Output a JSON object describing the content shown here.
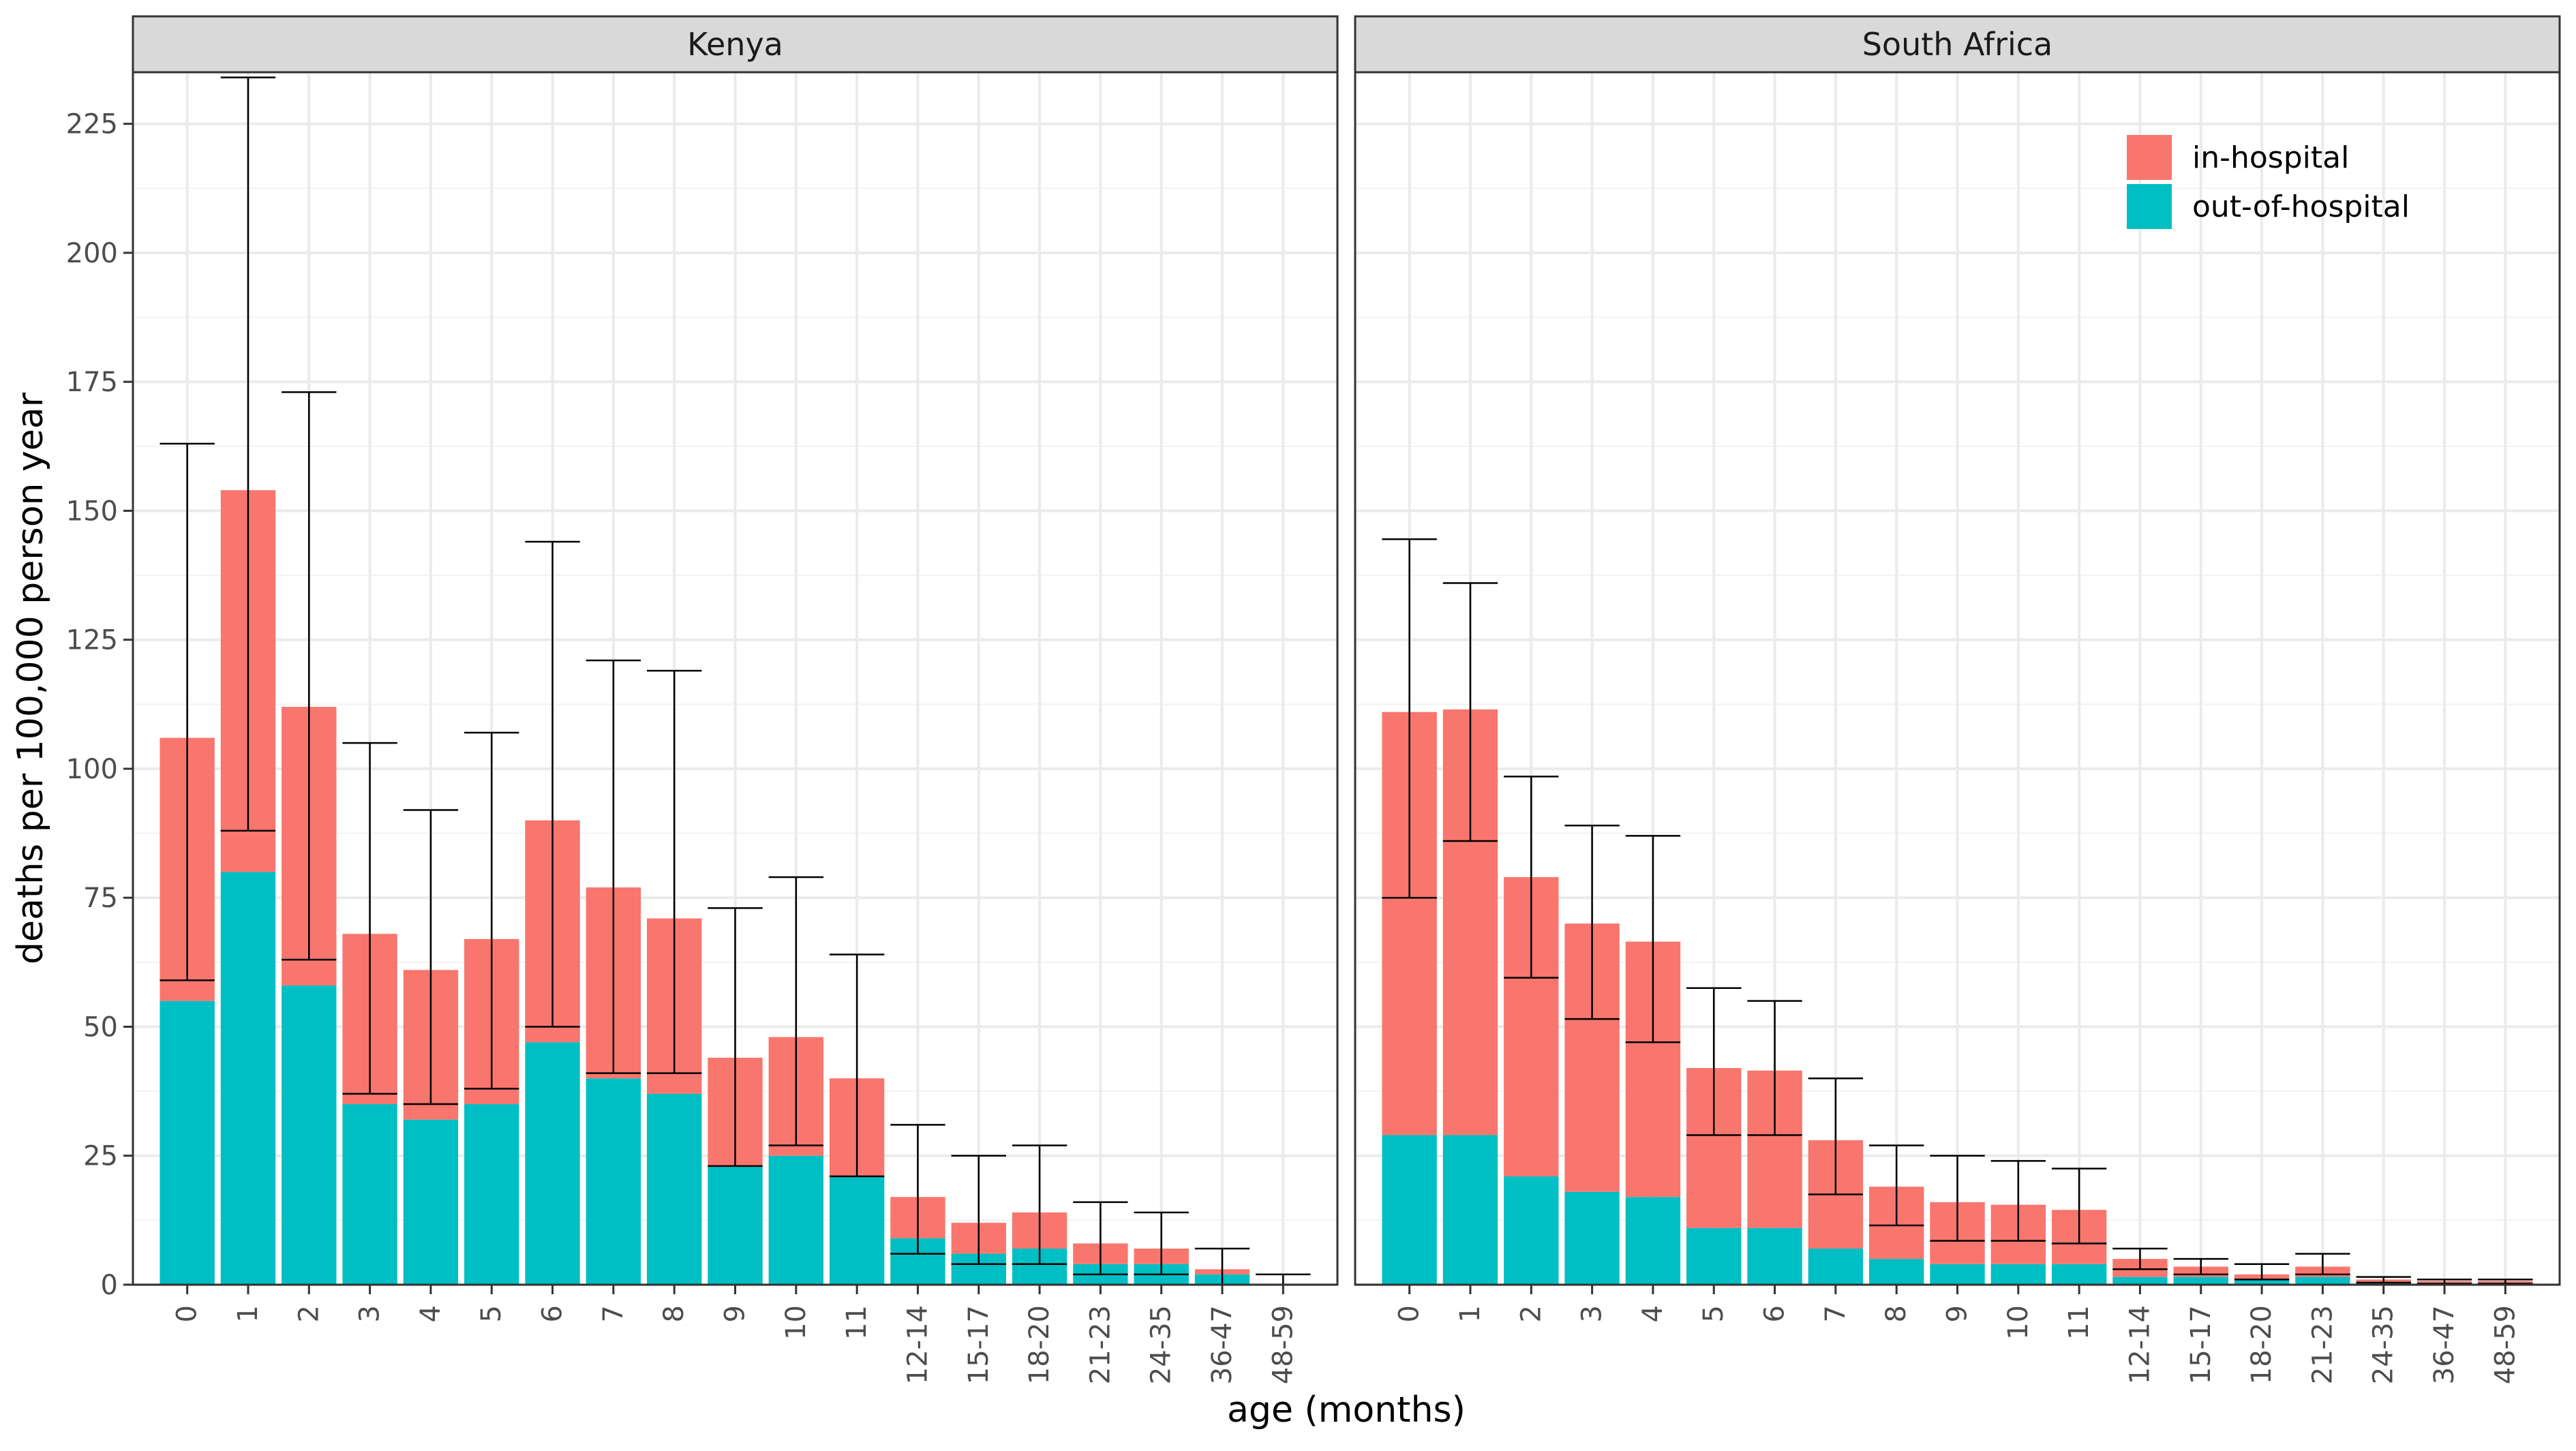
{
  "chart_data": {
    "type": "bar",
    "stacked": true,
    "error_bars": true,
    "xlabel": "age (months)",
    "ylabel": "deaths per 100,000 person year",
    "ylim": [
      0,
      235
    ],
    "yticks": [
      0,
      25,
      50,
      75,
      100,
      125,
      150,
      175,
      200,
      225
    ],
    "grid": true,
    "legend_position": "top-right (inside South Africa panel)",
    "categories": [
      "0",
      "1",
      "2",
      "3",
      "4",
      "5",
      "6",
      "7",
      "8",
      "9",
      "10",
      "11",
      "12-14",
      "15-17",
      "18-20",
      "21-23",
      "24-35",
      "36-47",
      "48-59"
    ],
    "series_names": [
      "in-hospital",
      "out-of-hospital"
    ],
    "colors": {
      "in-hospital": "#F8766D",
      "out-of-hospital": "#00BFC4"
    },
    "panels": [
      {
        "title": "Kenya",
        "out_of_hospital": [
          55,
          80,
          58,
          35,
          32,
          35,
          47,
          40,
          37,
          23,
          25,
          21,
          9,
          6,
          7,
          4,
          4,
          2,
          0
        ],
        "total": [
          106,
          154,
          112,
          68,
          61,
          67,
          90,
          77,
          71,
          44,
          48,
          40,
          17,
          12,
          14,
          8,
          7,
          3,
          0
        ],
        "ci_low": [
          59,
          88,
          63,
          37,
          35,
          38,
          50,
          41,
          41,
          23,
          27,
          21,
          6,
          4,
          4,
          2,
          2,
          0,
          0
        ],
        "ci_high": [
          163,
          234,
          173,
          105,
          92,
          107,
          144,
          121,
          119,
          73,
          79,
          64,
          31,
          25,
          27,
          16,
          14,
          7,
          2
        ]
      },
      {
        "title": "South Africa",
        "out_of_hospital": [
          29,
          29,
          21,
          18,
          17,
          11,
          11,
          7,
          5,
          4,
          4,
          4,
          1.5,
          1.5,
          1,
          1.5,
          0.3,
          0.2,
          0.2
        ],
        "total": [
          111,
          111.5,
          79,
          70,
          66.5,
          42,
          41.5,
          28,
          19,
          16,
          15.5,
          14.5,
          5,
          3.5,
          2,
          3.5,
          1,
          0.7,
          0.7
        ],
        "ci_low": [
          75,
          86,
          59.5,
          51.5,
          47,
          29,
          29,
          17.5,
          11.5,
          8.5,
          8.5,
          8,
          3,
          2,
          1,
          2,
          0.4,
          0.2,
          0.2
        ],
        "ci_high": [
          144.5,
          136,
          98.5,
          89,
          87,
          57.5,
          55,
          40,
          27,
          25,
          24,
          22.5,
          7,
          5,
          4,
          6,
          1.5,
          1,
          1
        ]
      }
    ]
  }
}
